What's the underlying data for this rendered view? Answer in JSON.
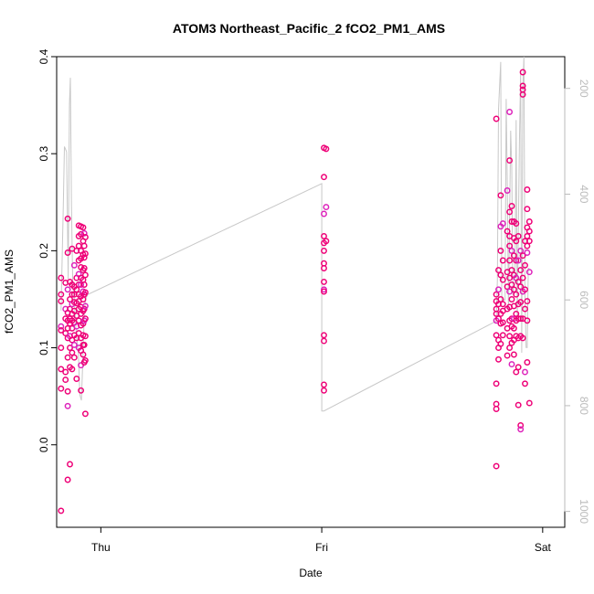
{
  "chart_data": {
    "type": "scatter",
    "title": "ATOM3 Northeast_Pacific_2 fCO2_PM1_AMS",
    "xlabel": "Date",
    "ylabel": "fCO2_PM1_AMS",
    "ylim": [
      -0.085,
      0.4
    ],
    "y_ticks": [
      0.0,
      0.1,
      0.2,
      0.3,
      0.4
    ],
    "y_tick_labels": [
      "0.0",
      "0.1",
      "0.2",
      "0.3",
      "0.4"
    ],
    "x_ticks": [
      0,
      1,
      2
    ],
    "x_tick_labels": [
      "Thu",
      "Fri",
      "Sat"
    ],
    "xlim": [
      -0.2,
      2.1
    ],
    "y2lim": [
      1030,
      140
    ],
    "y2_ticks": [
      200,
      400,
      600,
      800,
      1000
    ],
    "y2_tick_labels": [
      "200",
      "400",
      "600",
      "800",
      "1000"
    ],
    "grid": false,
    "colors": {
      "point_main": "#ee0077",
      "point_alt": "#dd22bb",
      "trace": "#c8c8c8",
      "right_axis": "#bbbbbb"
    },
    "series": [
      {
        "role": "fCO2_PM1_AMS points",
        "points": [
          [
            -0.18,
            0.172
          ],
          [
            -0.18,
            0.155
          ],
          [
            -0.18,
            0.148
          ],
          [
            -0.18,
            0.122
          ],
          [
            -0.18,
            0.118
          ],
          [
            -0.18,
            0.1
          ],
          [
            -0.18,
            0.078
          ],
          [
            -0.18,
            0.058
          ],
          [
            -0.18,
            -0.068
          ],
          [
            -0.16,
            0.167
          ],
          [
            -0.16,
            0.14
          ],
          [
            -0.16,
            0.13
          ],
          [
            -0.16,
            0.115
          ],
          [
            -0.16,
            0.075
          ],
          [
            -0.16,
            0.067
          ],
          [
            -0.15,
            0.233
          ],
          [
            -0.15,
            0.198
          ],
          [
            -0.15,
            0.16
          ],
          [
            -0.15,
            0.136
          ],
          [
            -0.15,
            0.128
          ],
          [
            -0.15,
            0.12
          ],
          [
            -0.15,
            0.11
          ],
          [
            -0.15,
            0.09
          ],
          [
            -0.15,
            0.055
          ],
          [
            -0.15,
            0.04
          ],
          [
            -0.15,
            -0.036
          ],
          [
            -0.14,
            0.168
          ],
          [
            -0.14,
            0.15
          ],
          [
            -0.14,
            0.14
          ],
          [
            -0.14,
            0.13
          ],
          [
            -0.14,
            0.125
          ],
          [
            -0.14,
            0.112
          ],
          [
            -0.14,
            0.1
          ],
          [
            -0.14,
            0.08
          ],
          [
            -0.14,
            -0.02
          ],
          [
            -0.13,
            0.202
          ],
          [
            -0.13,
            0.165
          ],
          [
            -0.13,
            0.155
          ],
          [
            -0.13,
            0.145
          ],
          [
            -0.13,
            0.135
          ],
          [
            -0.13,
            0.128
          ],
          [
            -0.13,
            0.12
          ],
          [
            -0.13,
            0.108
          ],
          [
            -0.13,
            0.095
          ],
          [
            -0.13,
            0.078
          ],
          [
            -0.12,
            0.185
          ],
          [
            -0.12,
            0.163
          ],
          [
            -0.12,
            0.155
          ],
          [
            -0.12,
            0.147
          ],
          [
            -0.12,
            0.138
          ],
          [
            -0.12,
            0.126
          ],
          [
            -0.12,
            0.113
          ],
          [
            -0.12,
            0.103
          ],
          [
            -0.12,
            0.09
          ],
          [
            -0.11,
            0.2
          ],
          [
            -0.11,
            0.172
          ],
          [
            -0.11,
            0.16
          ],
          [
            -0.11,
            0.146
          ],
          [
            -0.11,
            0.133
          ],
          [
            -0.11,
            0.122
          ],
          [
            -0.11,
            0.11
          ],
          [
            -0.11,
            0.068
          ],
          [
            -0.1,
            0.226
          ],
          [
            -0.1,
            0.215
          ],
          [
            -0.1,
            0.205
          ],
          [
            -0.1,
            0.19
          ],
          [
            -0.1,
            0.176
          ],
          [
            -0.1,
            0.165
          ],
          [
            -0.1,
            0.155
          ],
          [
            -0.1,
            0.148
          ],
          [
            -0.1,
            0.14
          ],
          [
            -0.1,
            0.128
          ],
          [
            -0.1,
            0.115
          ],
          [
            -0.1,
            0.1
          ],
          [
            -0.09,
            0.225
          ],
          [
            -0.09,
            0.217
          ],
          [
            -0.09,
            0.2
          ],
          [
            -0.09,
            0.192
          ],
          [
            -0.09,
            0.183
          ],
          [
            -0.09,
            0.172
          ],
          [
            -0.09,
            0.165
          ],
          [
            -0.09,
            0.153
          ],
          [
            -0.09,
            0.142
          ],
          [
            -0.09,
            0.135
          ],
          [
            -0.09,
            0.123
          ],
          [
            -0.09,
            0.11
          ],
          [
            -0.09,
            0.097
          ],
          [
            -0.09,
            0.082
          ],
          [
            -0.09,
            0.056
          ],
          [
            -0.08,
            0.224
          ],
          [
            -0.08,
            0.21
          ],
          [
            -0.08,
            0.196
          ],
          [
            -0.08,
            0.18
          ],
          [
            -0.08,
            0.17
          ],
          [
            -0.08,
            0.158
          ],
          [
            -0.08,
            0.15
          ],
          [
            -0.08,
            0.138
          ],
          [
            -0.08,
            0.125
          ],
          [
            -0.08,
            0.113
          ],
          [
            -0.08,
            0.103
          ],
          [
            -0.08,
            0.093
          ],
          [
            -0.075,
            0.218
          ],
          [
            -0.075,
            0.205
          ],
          [
            -0.075,
            0.193
          ],
          [
            -0.075,
            0.182
          ],
          [
            -0.075,
            0.165
          ],
          [
            -0.075,
            0.155
          ],
          [
            -0.075,
            0.14
          ],
          [
            -0.075,
            0.128
          ],
          [
            -0.075,
            0.103
          ],
          [
            -0.075,
            0.085
          ],
          [
            -0.07,
            0.214
          ],
          [
            -0.07,
            0.197
          ],
          [
            -0.07,
            0.175
          ],
          [
            -0.07,
            0.157
          ],
          [
            -0.07,
            0.143
          ],
          [
            -0.07,
            0.13
          ],
          [
            -0.07,
            0.112
          ],
          [
            -0.07,
            0.087
          ],
          [
            -0.07,
            0.032
          ],
          [
            1.01,
            0.306
          ],
          [
            1.01,
            0.276
          ],
          [
            1.01,
            0.238
          ],
          [
            1.01,
            0.215
          ],
          [
            1.01,
            0.208
          ],
          [
            1.01,
            0.2
          ],
          [
            1.01,
            0.187
          ],
          [
            1.01,
            0.182
          ],
          [
            1.01,
            0.168
          ],
          [
            1.01,
            0.16
          ],
          [
            1.01,
            0.158
          ],
          [
            1.01,
            0.113
          ],
          [
            1.01,
            0.107
          ],
          [
            1.01,
            0.062
          ],
          [
            1.01,
            0.056
          ],
          [
            1.02,
            0.305
          ],
          [
            1.02,
            0.245
          ],
          [
            1.02,
            0.21
          ],
          [
            1.79,
            0.336
          ],
          [
            1.79,
            0.155
          ],
          [
            1.79,
            0.148
          ],
          [
            1.79,
            0.14
          ],
          [
            1.79,
            0.135
          ],
          [
            1.79,
            0.128
          ],
          [
            1.79,
            0.113
          ],
          [
            1.79,
            0.063
          ],
          [
            1.79,
            0.042
          ],
          [
            1.79,
            0.037
          ],
          [
            1.79,
            -0.022
          ],
          [
            1.8,
            0.18
          ],
          [
            1.8,
            0.16
          ],
          [
            1.8,
            0.145
          ],
          [
            1.8,
            0.13
          ],
          [
            1.8,
            0.108
          ],
          [
            1.8,
            0.1
          ],
          [
            1.8,
            0.088
          ],
          [
            1.81,
            0.257
          ],
          [
            1.81,
            0.225
          ],
          [
            1.81,
            0.2
          ],
          [
            1.81,
            0.175
          ],
          [
            1.81,
            0.15
          ],
          [
            1.81,
            0.135
          ],
          [
            1.81,
            0.125
          ],
          [
            1.81,
            0.104
          ],
          [
            1.82,
            0.228
          ],
          [
            1.82,
            0.19
          ],
          [
            1.82,
            0.17
          ],
          [
            1.82,
            0.145
          ],
          [
            1.82,
            0.138
          ],
          [
            1.82,
            0.126
          ],
          [
            1.82,
            0.113
          ],
          [
            1.84,
            0.262
          ],
          [
            1.84,
            0.22
          ],
          [
            1.84,
            0.178
          ],
          [
            1.84,
            0.163
          ],
          [
            1.84,
            0.14
          ],
          [
            1.84,
            0.12
          ],
          [
            1.84,
            0.092
          ],
          [
            1.85,
            0.343
          ],
          [
            1.85,
            0.293
          ],
          [
            1.85,
            0.24
          ],
          [
            1.85,
            0.215
          ],
          [
            1.85,
            0.205
          ],
          [
            1.85,
            0.19
          ],
          [
            1.85,
            0.172
          ],
          [
            1.85,
            0.158
          ],
          [
            1.85,
            0.142
          ],
          [
            1.85,
            0.128
          ],
          [
            1.85,
            0.112
          ],
          [
            1.85,
            0.1
          ],
          [
            1.86,
            0.246
          ],
          [
            1.86,
            0.23
          ],
          [
            1.86,
            0.2
          ],
          [
            1.86,
            0.18
          ],
          [
            1.86,
            0.165
          ],
          [
            1.86,
            0.15
          ],
          [
            1.86,
            0.13
          ],
          [
            1.86,
            0.122
          ],
          [
            1.86,
            0.105
          ],
          [
            1.86,
            0.083
          ],
          [
            1.87,
            0.23
          ],
          [
            1.87,
            0.213
          ],
          [
            1.87,
            0.195
          ],
          [
            1.87,
            0.175
          ],
          [
            1.87,
            0.16
          ],
          [
            1.87,
            0.143
          ],
          [
            1.87,
            0.13
          ],
          [
            1.87,
            0.12
          ],
          [
            1.87,
            0.108
          ],
          [
            1.87,
            0.093
          ],
          [
            1.88,
            0.228
          ],
          [
            1.88,
            0.21
          ],
          [
            1.88,
            0.19
          ],
          [
            1.88,
            0.172
          ],
          [
            1.88,
            0.155
          ],
          [
            1.88,
            0.135
          ],
          [
            1.88,
            0.128
          ],
          [
            1.88,
            0.112
          ],
          [
            1.88,
            0.075
          ],
          [
            1.89,
            0.215
          ],
          [
            1.89,
            0.19
          ],
          [
            1.89,
            0.168
          ],
          [
            1.89,
            0.145
          ],
          [
            1.89,
            0.13
          ],
          [
            1.89,
            0.11
          ],
          [
            1.89,
            0.08
          ],
          [
            1.89,
            0.041
          ],
          [
            1.9,
            0.2
          ],
          [
            1.9,
            0.18
          ],
          [
            1.9,
            0.163
          ],
          [
            1.9,
            0.147
          ],
          [
            1.9,
            0.13
          ],
          [
            1.9,
            0.112
          ],
          [
            1.9,
            0.02
          ],
          [
            1.9,
            0.016
          ],
          [
            1.91,
            0.384
          ],
          [
            1.91,
            0.37
          ],
          [
            1.91,
            0.366
          ],
          [
            1.91,
            0.361
          ],
          [
            1.91,
            0.195
          ],
          [
            1.91,
            0.172
          ],
          [
            1.91,
            0.158
          ],
          [
            1.91,
            0.13
          ],
          [
            1.91,
            0.11
          ],
          [
            1.92,
            0.21
          ],
          [
            1.92,
            0.185
          ],
          [
            1.92,
            0.16
          ],
          [
            1.92,
            0.14
          ],
          [
            1.92,
            0.075
          ],
          [
            1.92,
            0.063
          ],
          [
            1.93,
            0.263
          ],
          [
            1.93,
            0.243
          ],
          [
            1.93,
            0.224
          ],
          [
            1.93,
            0.215
          ],
          [
            1.93,
            0.205
          ],
          [
            1.93,
            0.198
          ],
          [
            1.93,
            0.148
          ],
          [
            1.93,
            0.128
          ],
          [
            1.93,
            0.085
          ],
          [
            1.94,
            0.23
          ],
          [
            1.94,
            0.22
          ],
          [
            1.94,
            0.21
          ],
          [
            1.94,
            0.178
          ],
          [
            1.94,
            0.043
          ]
        ]
      },
      {
        "role": "grey trace (right axis)",
        "points": [
          [
            -0.18,
            620
          ],
          [
            -0.17,
            420
          ],
          [
            -0.165,
            310
          ],
          [
            -0.155,
            320
          ],
          [
            -0.148,
            560
          ],
          [
            -0.142,
            230
          ],
          [
            -0.138,
            180
          ],
          [
            -0.133,
            420
          ],
          [
            -0.127,
            570
          ],
          [
            -0.12,
            600
          ],
          [
            -0.112,
            660
          ],
          [
            -0.102,
            700
          ],
          [
            -0.095,
            780
          ],
          [
            -0.088,
            790
          ],
          [
            -0.082,
            720
          ],
          [
            -0.076,
            640
          ],
          [
            -0.07,
            600
          ],
          [
            -0.06,
            590
          ],
          [
            1.0,
            380
          ],
          [
            1.0,
            810
          ],
          [
            1.01,
            810
          ],
          [
            1.79,
            640
          ],
          [
            1.795,
            560
          ],
          [
            1.8,
            240
          ],
          [
            1.81,
            150
          ],
          [
            1.815,
            600
          ],
          [
            1.83,
            600
          ],
          [
            1.835,
            220
          ],
          [
            1.84,
            380
          ],
          [
            1.845,
            620
          ],
          [
            1.855,
            280
          ],
          [
            1.86,
            350
          ],
          [
            1.865,
            590
          ],
          [
            1.875,
            560
          ],
          [
            1.88,
            260
          ],
          [
            1.885,
            640
          ],
          [
            1.895,
            300
          ],
          [
            1.9,
            170
          ],
          [
            1.905,
            700
          ],
          [
            1.91,
            200
          ],
          [
            1.915,
            140
          ],
          [
            1.92,
            600
          ],
          [
            1.925,
            690
          ],
          [
            1.93,
            690
          ],
          [
            1.935,
            540
          ],
          [
            1.94,
            540
          ]
        ]
      }
    ]
  }
}
